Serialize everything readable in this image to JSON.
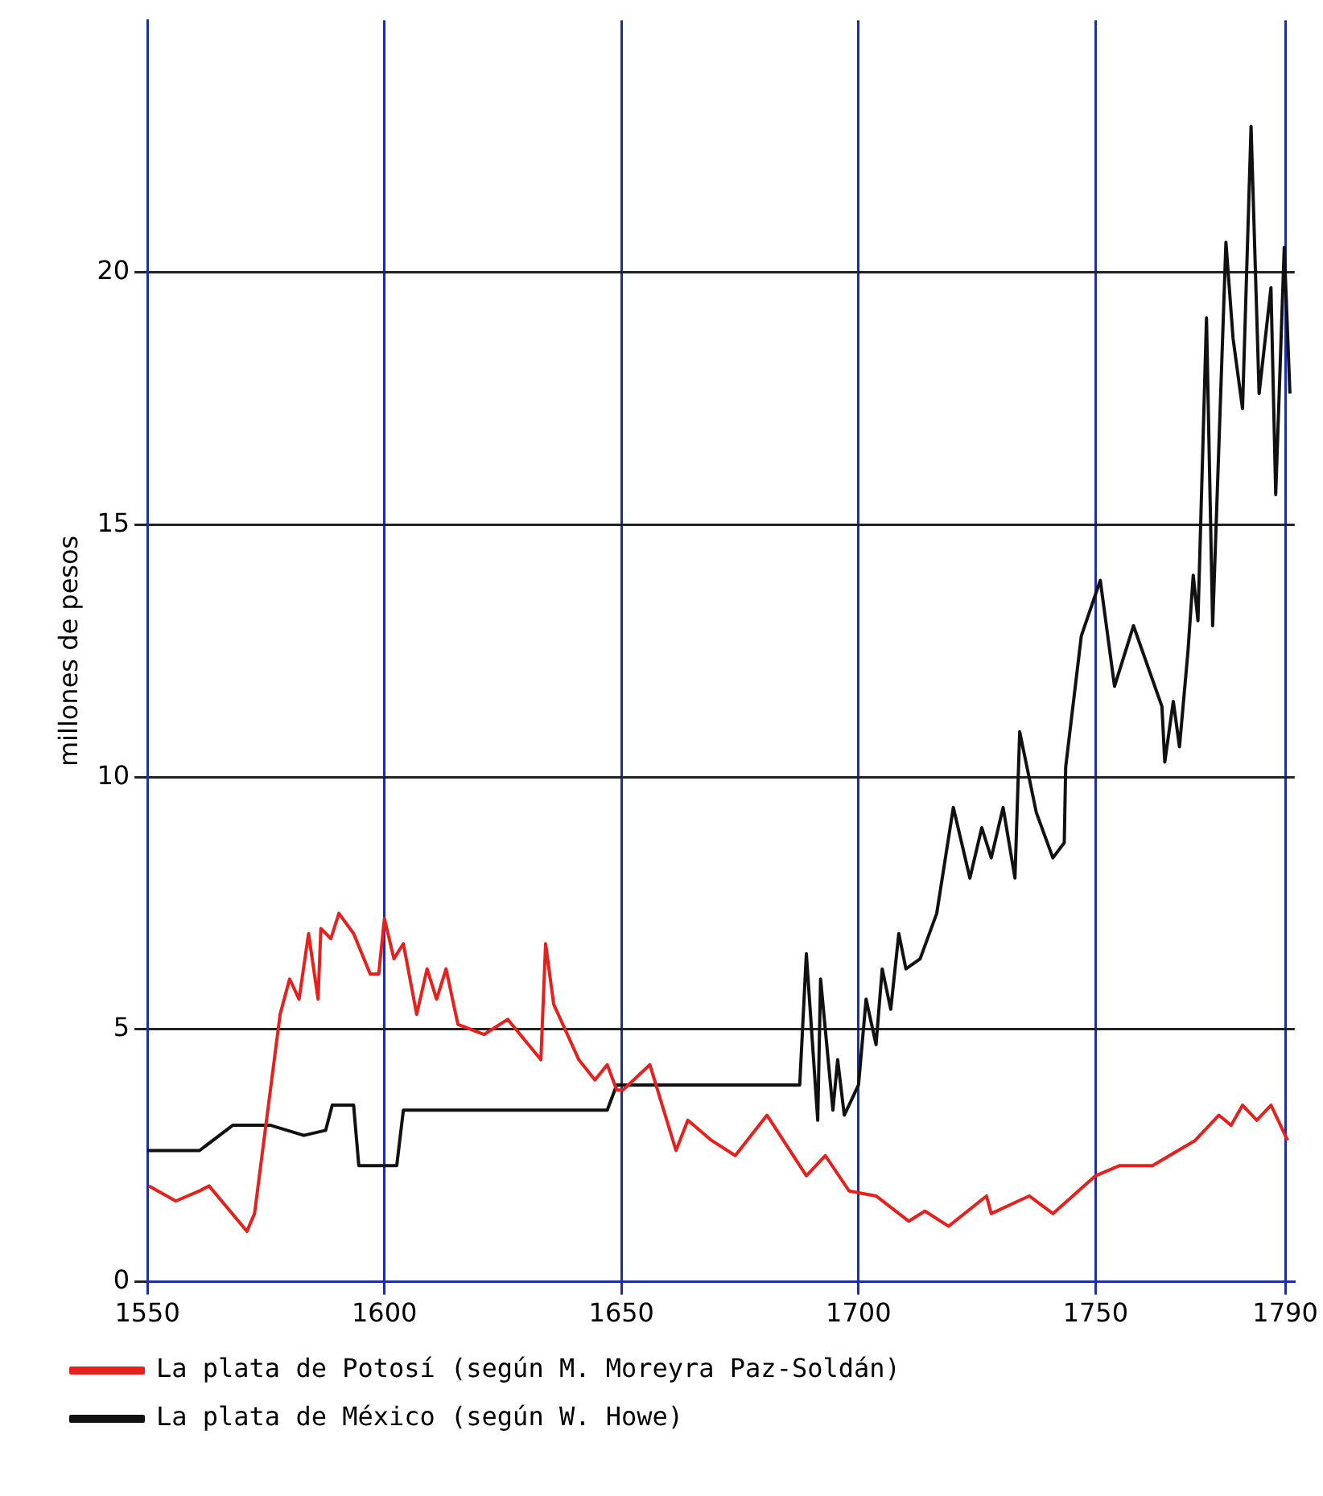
{
  "chart_data": {
    "type": "line",
    "ylabel": "millones de pesos",
    "xlim": [
      1550,
      1792
    ],
    "xticks": [
      1550,
      1600,
      1650,
      1700,
      1750,
      1790
    ],
    "ylim": [
      0,
      25
    ],
    "yticks": [
      0,
      5,
      10,
      15,
      20
    ],
    "grid": true,
    "legend": "bottom",
    "marker": "none",
    "line_style": "solid",
    "series": [
      {
        "name": "La plata de Potosí (según M. Moreyra Paz-Soldán)",
        "color": "#e8201c",
        "x": [
          1550.3,
          1556,
          1561,
          1563,
          1571,
          1572.6,
          1578,
          1580,
          1582,
          1584,
          1586,
          1586.6,
          1588.7,
          1590.4,
          1593.5,
          1597,
          1598.8,
          1600,
          1602,
          1604,
          1606.8,
          1609,
          1611,
          1613,
          1615.5,
          1621,
          1626,
          1633,
          1634,
          1635.7,
          1641,
          1644.4,
          1647,
          1649,
          1650.3,
          1656,
          1661.5,
          1664,
          1669,
          1674,
          1680.7,
          1689,
          1693,
          1698,
          1703.7,
          1710.6,
          1714,
          1719,
          1727,
          1728,
          1736,
          1741,
          1750,
          1755,
          1762,
          1771,
          1776,
          1778.6,
          1781,
          1784,
          1787,
          1790.5
        ],
        "values": [
          1.9,
          1.6,
          1.8,
          1.9,
          1.0,
          1.35,
          5.3,
          6.0,
          5.6,
          6.9,
          5.6,
          7.0,
          6.8,
          7.3,
          6.9,
          6.1,
          6.1,
          7.2,
          6.4,
          6.7,
          5.3,
          6.2,
          5.6,
          6.2,
          5.1,
          4.9,
          5.2,
          4.4,
          6.7,
          5.5,
          4.4,
          4.0,
          4.3,
          3.8,
          3.8,
          4.3,
          2.6,
          3.2,
          2.8,
          2.5,
          3.3,
          2.1,
          2.5,
          1.8,
          1.7,
          1.2,
          1.4,
          1.1,
          1.7,
          1.35,
          1.7,
          1.35,
          2.1,
          2.3,
          2.3,
          2.8,
          3.3,
          3.1,
          3.5,
          3.2,
          3.5,
          2.8
        ]
      },
      {
        "name": "La plata de México (según W. Howe)",
        "color": "#111111",
        "x": [
          1550,
          1561,
          1568,
          1576,
          1583,
          1587.6,
          1589,
          1593.5,
          1594.6,
          1602.6,
          1604,
          1647,
          1649,
          1687.6,
          1689,
          1691.4,
          1692,
          1694.6,
          1695.6,
          1697,
          1700,
          1701.6,
          1703.7,
          1705,
          1706.8,
          1708.5,
          1710,
          1713,
          1716.5,
          1720,
          1723.5,
          1726,
          1728,
          1730.5,
          1733,
          1734,
          1737.5,
          1741,
          1743.4,
          1743.7,
          1747,
          1751,
          1754,
          1758,
          1764,
          1764.6,
          1766.4,
          1767.7,
          1769.5,
          1770.6,
          1771.6,
          1773.4,
          1774.7,
          1777.5,
          1779,
          1781,
          1782.8,
          1784.5,
          1787,
          1788,
          1789.8,
          1791
        ],
        "values": [
          2.6,
          2.6,
          3.1,
          3.1,
          2.9,
          3.0,
          3.5,
          3.5,
          2.3,
          2.3,
          3.4,
          3.4,
          3.9,
          3.9,
          6.5,
          3.2,
          6.0,
          3.4,
          4.4,
          3.3,
          3.9,
          5.6,
          4.7,
          6.2,
          5.4,
          6.9,
          6.2,
          6.4,
          7.3,
          9.4,
          8.0,
          9.0,
          8.4,
          9.4,
          8.0,
          10.9,
          9.3,
          8.4,
          8.7,
          10.2,
          12.8,
          13.9,
          11.8,
          13.0,
          11.4,
          10.3,
          11.5,
          10.6,
          12.5,
          14.0,
          13.1,
          19.1,
          13.0,
          20.6,
          18.7,
          17.3,
          22.9,
          17.6,
          19.7,
          15.6,
          20.5,
          17.6
        ]
      }
    ]
  }
}
